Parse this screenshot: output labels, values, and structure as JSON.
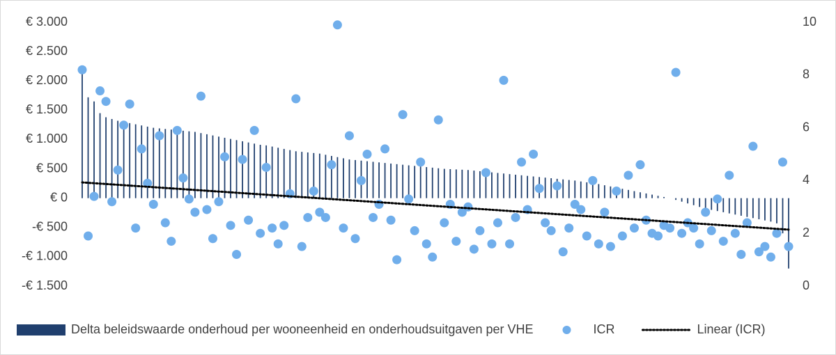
{
  "chart_data": {
    "type": "combo",
    "ylim": [
      -1500,
      3000
    ],
    "yticks": [
      {
        "value": -1500,
        "label": "-€ 1.500"
      },
      {
        "value": -1000,
        "label": "-€ 1.000"
      },
      {
        "value": -500,
        "label": "-€ 500"
      },
      {
        "value": 0,
        "label": "€ 0"
      },
      {
        "value": 500,
        "label": "€ 500"
      },
      {
        "value": 1000,
        "label": "€ 1.000"
      },
      {
        "value": 1500,
        "label": "€ 1.500"
      },
      {
        "value": 2000,
        "label": "€ 2.000"
      },
      {
        "value": 2500,
        "label": "€ 2.500"
      },
      {
        "value": 3000,
        "label": "€ 3.000"
      }
    ],
    "y2lim": [
      0,
      10
    ],
    "y2ticks": [
      0,
      2,
      4,
      6,
      8,
      10
    ],
    "legend": "bottom",
    "series": [
      {
        "name": "Delta beleidswaarde onderhoud per wooneenheid en onderhoudsuitgaven per VHE",
        "type": "bar",
        "axis": "y",
        "color": "#203f6e",
        "values": [
          2150,
          1720,
          1650,
          1450,
          1380,
          1350,
          1320,
          1300,
          1280,
          1260,
          1240,
          1220,
          1200,
          1190,
          1180,
          1170,
          1160,
          1150,
          1140,
          1130,
          1110,
          1090,
          1070,
          1050,
          1030,
          1010,
          990,
          970,
          950,
          930,
          910,
          900,
          880,
          860,
          840,
          820,
          800,
          790,
          780,
          770,
          760,
          740,
          720,
          700,
          680,
          660,
          650,
          640,
          630,
          620,
          610,
          600,
          590,
          580,
          570,
          560,
          550,
          540,
          530,
          520,
          510,
          500,
          495,
          490,
          485,
          480,
          470,
          460,
          450,
          440,
          430,
          420,
          410,
          400,
          390,
          380,
          370,
          360,
          350,
          340,
          330,
          320,
          310,
          300,
          285,
          270,
          255,
          240,
          220,
          200,
          180,
          160,
          140,
          120,
          100,
          80,
          60,
          40,
          20,
          0,
          -30,
          -60,
          -90,
          -120,
          -150,
          -180,
          -200,
          -220,
          -240,
          -260,
          -280,
          -300,
          -320,
          -340,
          -360,
          -380,
          -400,
          -430,
          -600,
          -1200
        ]
      },
      {
        "name": "ICR",
        "type": "scatter",
        "axis": "y2",
        "color": "#70aeeb",
        "values": [
          8.2,
          1.9,
          3.4,
          7.4,
          7.0,
          3.2,
          4.4,
          6.1,
          6.9,
          2.2,
          5.2,
          3.9,
          3.1,
          5.7,
          2.4,
          1.7,
          5.9,
          4.1,
          3.3,
          2.8,
          7.2,
          2.9,
          1.8,
          3.2,
          4.9,
          2.3,
          1.2,
          4.8,
          2.5,
          5.9,
          2.0,
          4.5,
          2.2,
          1.6,
          2.3,
          3.5,
          7.1,
          1.5,
          2.6,
          3.6,
          2.8,
          2.6,
          4.6,
          9.9,
          2.2,
          5.7,
          1.8,
          4.0,
          5.0,
          2.6,
          3.1,
          5.2,
          2.5,
          1.0,
          6.5,
          3.3,
          2.1,
          4.7,
          1.6,
          1.1,
          6.3,
          2.4,
          3.1,
          1.7,
          2.8,
          3.0,
          1.4,
          2.1,
          4.3,
          1.6,
          2.4,
          7.8,
          1.6,
          2.6,
          4.7,
          2.9,
          5.0,
          3.7,
          2.4,
          2.1,
          3.8,
          1.3,
          2.2,
          3.1,
          2.9,
          1.9,
          4.0,
          1.6,
          2.8,
          1.5,
          3.6,
          1.9,
          4.2,
          2.2,
          4.6,
          2.5,
          2.0,
          1.9,
          2.3,
          2.2,
          8.1,
          2.0,
          2.4,
          2.2,
          1.6,
          2.8,
          2.1,
          3.3,
          1.7,
          4.2,
          2.0,
          1.2,
          2.4,
          5.3,
          1.3,
          1.5,
          1.1,
          2.0,
          4.7,
          1.5
        ]
      },
      {
        "name": "Linear (ICR)",
        "type": "trendline",
        "axis": "y2",
        "color": "#000000",
        "values": [
          3.93,
          2.14
        ]
      }
    ]
  }
}
